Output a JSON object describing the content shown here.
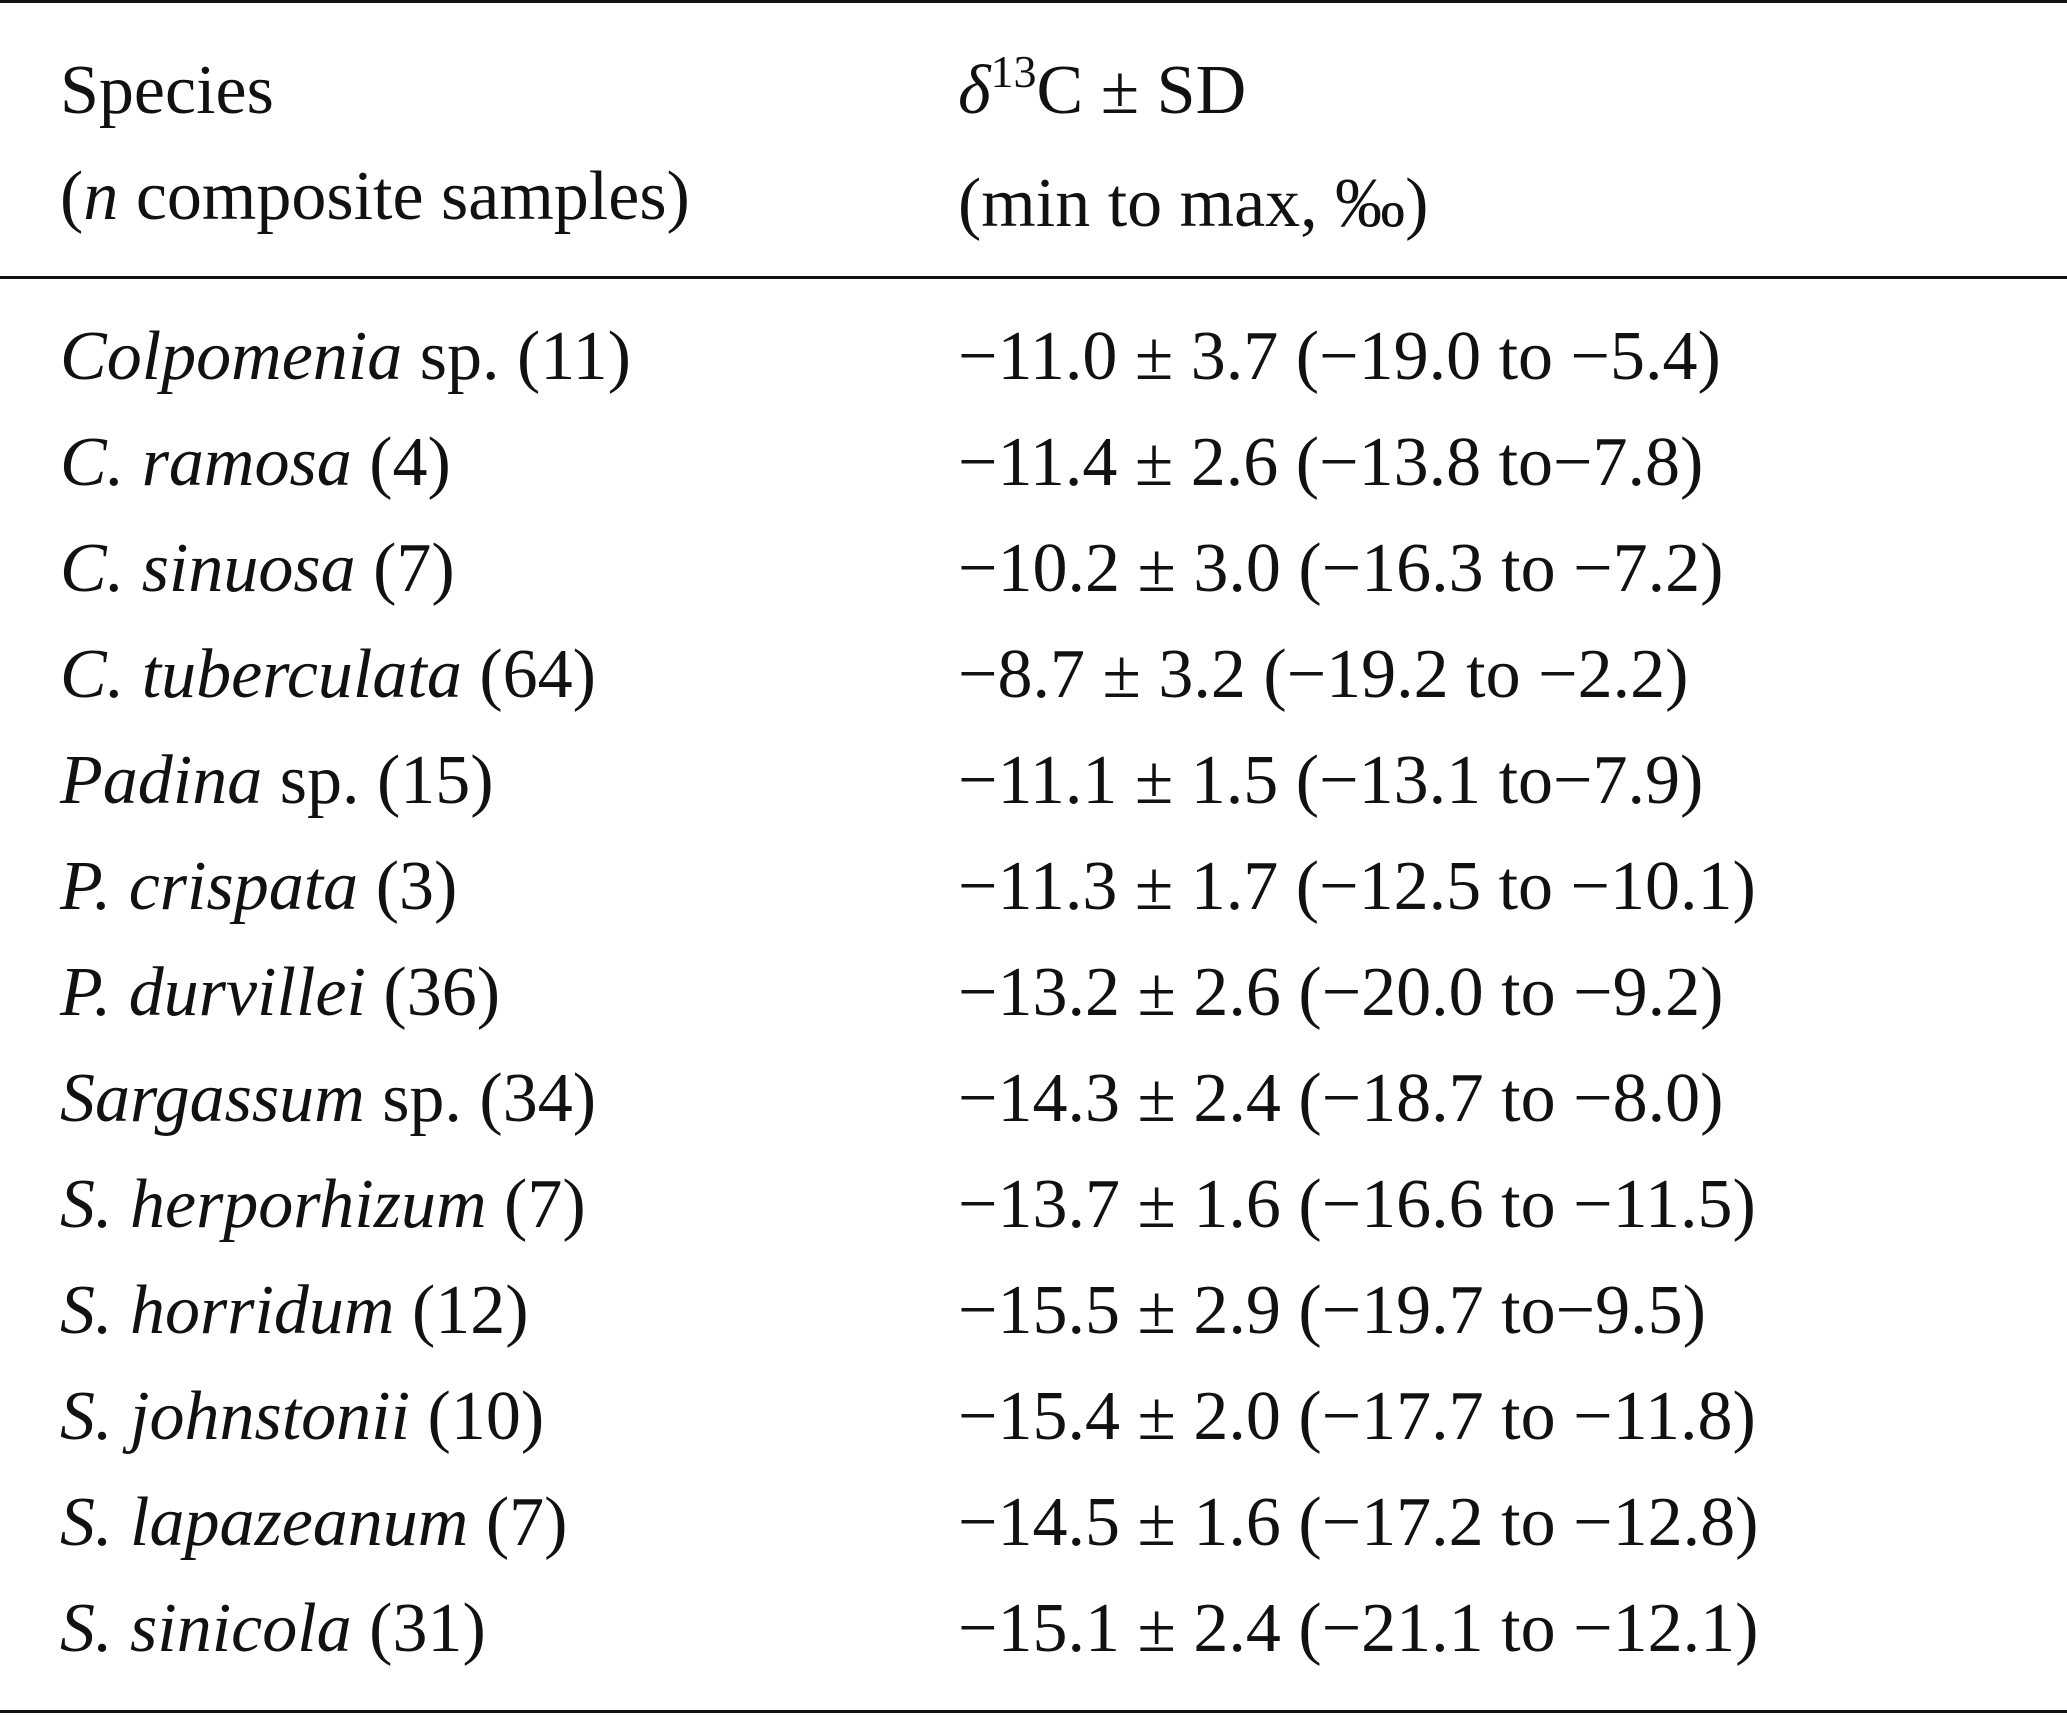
{
  "header": {
    "species_line1": "Species",
    "species_line2_italic": "n",
    "species_line2_rest": " composite samples)",
    "species_line2_open": "(",
    "delta_symbol": "δ",
    "delta_superscript": "13",
    "delta_line1_rest": "C ± SD",
    "delta_line2": "(min to max, ‰)"
  },
  "rows": [
    {
      "name_italic": "Colpomenia",
      "name_rest": " sp. (11)",
      "value": "−11.0 ± 3.7 (−19.0 to −5.4)"
    },
    {
      "name_italic": "C. ramosa",
      "name_rest": " (4)",
      "value": "−11.4 ± 2.6 (−13.8 to−7.8)"
    },
    {
      "name_italic": "C. sinuosa",
      "name_rest": " (7)",
      "value": "−10.2 ± 3.0 (−16.3 to −7.2)"
    },
    {
      "name_italic": "C. tuberculata",
      "name_rest": " (64)",
      "value": "−8.7 ± 3.2 (−19.2 to −2.2)"
    },
    {
      "name_italic": "Padina",
      "name_rest": " sp. (15)",
      "value": "−11.1 ± 1.5 (−13.1 to−7.9)"
    },
    {
      "name_italic": "P. crispata",
      "name_rest": " (3)",
      "value": "−11.3 ± 1.7 (−12.5 to −10.1)"
    },
    {
      "name_italic": "P. durvillei",
      "name_rest": " (36)",
      "value": "−13.2 ± 2.6 (−20.0 to −9.2)"
    },
    {
      "name_italic": "Sargassum",
      "name_rest": " sp. (34)",
      "value": "−14.3 ± 2.4 (−18.7 to −8.0)"
    },
    {
      "name_italic": "S. herporhizum",
      "name_rest": " (7)",
      "value": "−13.7 ± 1.6 (−16.6 to −11.5)"
    },
    {
      "name_italic": "S. horridum",
      "name_rest": " (12)",
      "value": "−15.5 ± 2.9 (−19.7 to−9.5)"
    },
    {
      "name_italic": "S. johnstonii",
      "name_rest": " (10)",
      "value": "−15.4 ± 2.0 (−17.7 to −11.8)"
    },
    {
      "name_italic": "S. lapazeanum",
      "name_rest": " (7)",
      "value": "−14.5 ± 1.6 (−17.2 to −12.8)"
    },
    {
      "name_italic": "S. sinicola",
      "name_rest": " (31)",
      "value": "−15.1 ± 2.4 (−21.1 to −12.1)"
    }
  ]
}
